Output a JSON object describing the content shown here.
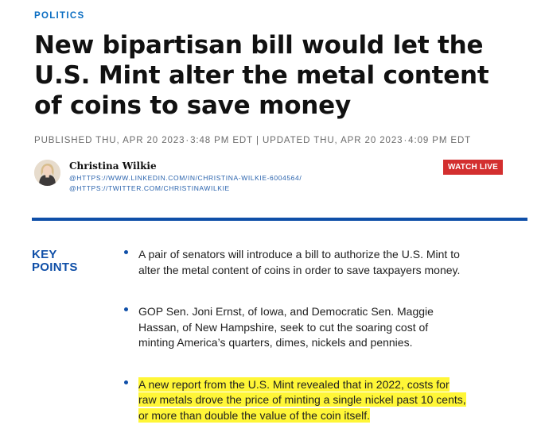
{
  "section": "POLITICS",
  "headline": "New bipartisan bill would let the U.S. Mint alter the metal content of coins to save money",
  "published": {
    "label": "PUBLISHED THU, APR 20 2023",
    "time": "3:48 PM EDT",
    "separator": "|",
    "updated_label": "UPDATED THU, APR 20 2023",
    "updated_time": "4:09 PM EDT",
    "dot": "·"
  },
  "author": {
    "name": "Christina Wilkie",
    "links": [
      "@HTTPS://WWW.LINKEDIN.COM/IN/CHRISTINA-WILKIE-6004564/",
      "@HTTPS://TWITTER.COM/CHRISTINAWILKIE"
    ]
  },
  "watch_live": "WATCH LIVE",
  "key_points": {
    "title": "KEY POINTS",
    "items": [
      "A pair of senators will introduce a bill to authorize the U.S. Mint to alter the metal content of coins in order to save taxpayers money.",
      "GOP Sen. Joni Ernst, of Iowa, and Democratic Sen. Maggie Hassan, of New Hampshire, seek to cut the soaring cost of minting America’s quarters, dimes, nickels and pennies.",
      "A new report from the U.S. Mint revealed that in 2022, costs for raw metals drove the price of minting a single nickel past 10 cents, or more than double the value of the coin itself."
    ]
  },
  "colors": {
    "accent": "#0f4fa8",
    "section": "#0a6dc2",
    "live": "#d32f2f",
    "highlight": "#fff637"
  }
}
